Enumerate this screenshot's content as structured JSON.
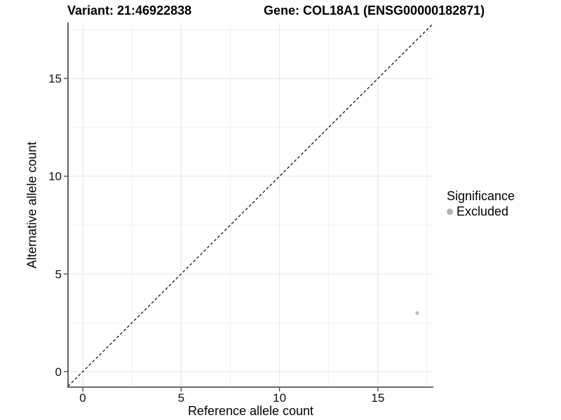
{
  "chart_data": {
    "type": "scatter",
    "titles": {
      "left": "Variant: 21:46922838",
      "right": "Gene: COL18A1 (ENSG00000182871)"
    },
    "xlabel": "Reference allele count",
    "ylabel": "Alternative allele count",
    "xlim": [
      -0.75,
      17.82
    ],
    "ylim": [
      -0.79,
      17.87
    ],
    "xticks": [
      0,
      5,
      10,
      15
    ],
    "yticks": [
      0,
      5,
      10,
      15
    ],
    "minor_gridlines_x": [
      2.5,
      7.5,
      12.5,
      17.5
    ],
    "minor_gridlines_y": [
      2.5,
      7.5,
      12.5,
      17.5
    ],
    "grid": "major+minor",
    "identity_line": {
      "slope": 1,
      "intercept": 0,
      "linetype": "dashed",
      "color": "#000000"
    },
    "series": [
      {
        "name": "Excluded",
        "color": "#bdbdbd",
        "points": [
          {
            "x": 17,
            "y": 3
          }
        ]
      }
    ],
    "legend": {
      "title": "Significance",
      "position": "right",
      "items": [
        {
          "label": "Excluded",
          "color": "#b3b3b3"
        }
      ]
    }
  },
  "style": {
    "axis_line_color": "#3a3a3a",
    "tick_color": "#333333",
    "tick_label_color": "#111111",
    "grid_major_color": "#e4e4e4",
    "grid_minor_color": "#f0f0f0",
    "background": "#ffffff"
  }
}
